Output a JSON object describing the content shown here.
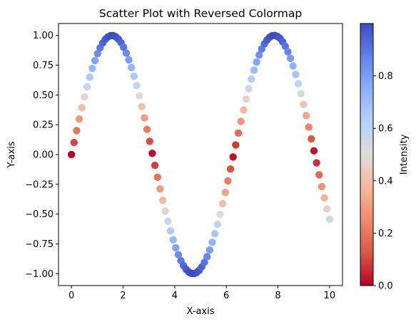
{
  "chart_data": {
    "type": "scatter",
    "title": "Scatter Plot with Reversed Colormap",
    "xlabel": "X-axis",
    "ylabel": "Y-axis",
    "xlim": [
      -0.5,
      10.5
    ],
    "ylim": [
      -1.1,
      1.1
    ],
    "xticks": [
      0,
      2,
      4,
      6,
      8,
      10
    ],
    "yticks": [
      -1.0,
      -0.75,
      -0.5,
      -0.25,
      0.0,
      0.25,
      0.5,
      0.75,
      1.0
    ],
    "xtick_labels": [
      "0",
      "2",
      "4",
      "6",
      "8",
      "10"
    ],
    "ytick_labels": [
      "−1.00",
      "−0.75",
      "−0.50",
      "−0.25",
      "0.00",
      "0.25",
      "0.50",
      "0.75",
      "1.00"
    ],
    "colorbar": {
      "label": "Intensity",
      "colormap": "coolwarm_r",
      "range": [
        0.0,
        1.0
      ],
      "ticks": [
        0.0,
        0.2,
        0.4,
        0.6,
        0.8
      ],
      "tick_labels": [
        "0.0",
        "0.2",
        "0.4",
        "0.6",
        "0.8"
      ]
    },
    "series": [
      {
        "function": "sin",
        "x_start": 0,
        "x_end": 10,
        "num_points": 100,
        "color_value": "abs(y)"
      }
    ],
    "grid": false
  }
}
